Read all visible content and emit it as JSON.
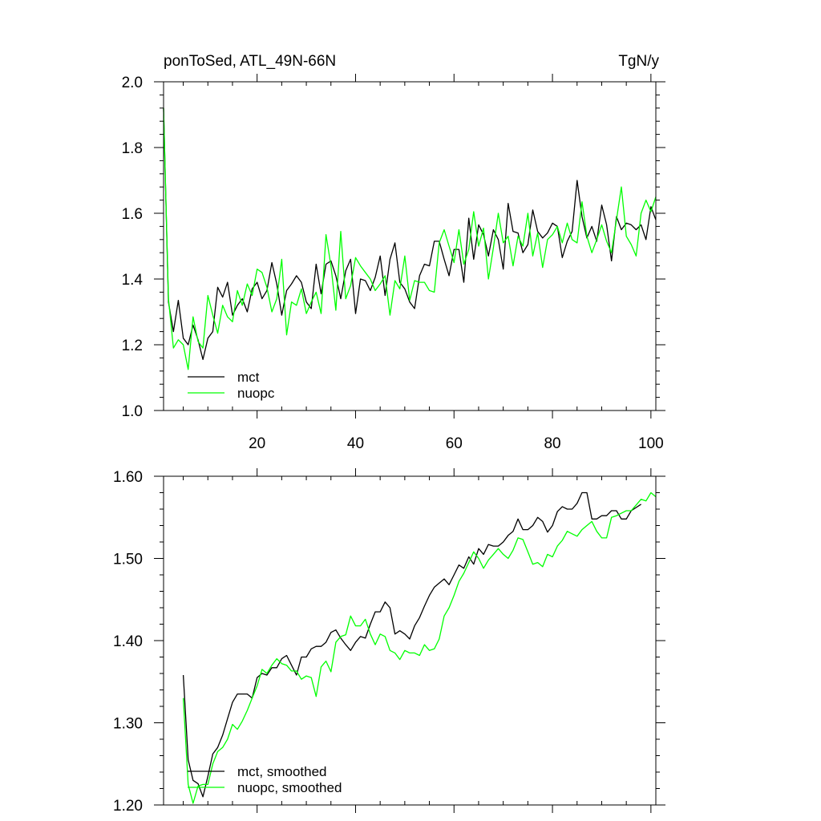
{
  "chart_data": [
    {
      "type": "line",
      "title": "ponToSed, ATL_49N-66N",
      "units": "TgN/y",
      "xlim": [
        1,
        101
      ],
      "ylim": [
        1.0,
        2.0
      ],
      "xticks": [
        20,
        40,
        60,
        80,
        100
      ],
      "xtick_labels": [
        "20",
        "40",
        "60",
        "80",
        "100"
      ],
      "yticks": [
        1.0,
        1.2,
        1.4,
        1.6,
        1.8,
        2.0
      ],
      "ytick_labels": [
        "1.0",
        "1.2",
        "1.4",
        "1.6",
        "1.8",
        "2.0"
      ],
      "legend": "bottom-left",
      "series": [
        {
          "name": "mct",
          "color": "#000000",
          "x_start": 1,
          "values": [
            1.92,
            1.33,
            1.24,
            1.335,
            1.22,
            1.2,
            1.26,
            1.215,
            1.155,
            1.22,
            1.24,
            1.375,
            1.345,
            1.39,
            1.29,
            1.32,
            1.34,
            1.3,
            1.37,
            1.39,
            1.34,
            1.365,
            1.45,
            1.385,
            1.29,
            1.365,
            1.385,
            1.41,
            1.39,
            1.33,
            1.31,
            1.445,
            1.355,
            1.445,
            1.455,
            1.41,
            1.34,
            1.425,
            1.46,
            1.295,
            1.4,
            1.395,
            1.365,
            1.405,
            1.47,
            1.35,
            1.46,
            1.51,
            1.39,
            1.37,
            1.33,
            1.31,
            1.41,
            1.445,
            1.44,
            1.515,
            1.515,
            1.46,
            1.41,
            1.49,
            1.49,
            1.39,
            1.585,
            1.46,
            1.565,
            1.535,
            1.47,
            1.55,
            1.52,
            1.43,
            1.63,
            1.545,
            1.54,
            1.48,
            1.505,
            1.61,
            1.545,
            1.525,
            1.54,
            1.57,
            1.56,
            1.465,
            1.515,
            1.545,
            1.7,
            1.59,
            1.525,
            1.56,
            1.515,
            1.625,
            1.565,
            1.455,
            1.59,
            1.55,
            1.57,
            1.565,
            1.55,
            1.565,
            1.52,
            1.62,
            1.58
          ]
        },
        {
          "name": "nuopc",
          "color": "#00ff00",
          "x_start": 1,
          "values": [
            1.92,
            1.34,
            1.19,
            1.215,
            1.2,
            1.125,
            1.285,
            1.21,
            1.19,
            1.35,
            1.29,
            1.235,
            1.32,
            1.285,
            1.27,
            1.365,
            1.32,
            1.385,
            1.35,
            1.43,
            1.42,
            1.375,
            1.3,
            1.34,
            1.46,
            1.23,
            1.33,
            1.32,
            1.37,
            1.295,
            1.33,
            1.36,
            1.295,
            1.535,
            1.44,
            1.305,
            1.545,
            1.34,
            1.38,
            1.465,
            1.44,
            1.42,
            1.4,
            1.365,
            1.385,
            1.41,
            1.29,
            1.395,
            1.37,
            1.47,
            1.335,
            1.395,
            1.39,
            1.39,
            1.365,
            1.36,
            1.51,
            1.55,
            1.5,
            1.45,
            1.55,
            1.445,
            1.49,
            1.605,
            1.5,
            1.555,
            1.4,
            1.495,
            1.6,
            1.51,
            1.53,
            1.44,
            1.53,
            1.5,
            1.6,
            1.47,
            1.54,
            1.435,
            1.52,
            1.535,
            1.56,
            1.51,
            1.57,
            1.52,
            1.51,
            1.635,
            1.53,
            1.48,
            1.52,
            1.565,
            1.515,
            1.48,
            1.58,
            1.68,
            1.53,
            1.505,
            1.47,
            1.6,
            1.64,
            1.605,
            1.65
          ]
        }
      ]
    },
    {
      "type": "line",
      "xlim": [
        1,
        101
      ],
      "ylim": [
        1.2,
        1.6
      ],
      "xticks": [
        20,
        40,
        60,
        80,
        100
      ],
      "yticks": [
        1.2,
        1.3,
        1.4,
        1.5,
        1.6
      ],
      "ytick_labels": [
        "1.20",
        "1.30",
        "1.40",
        "1.50",
        "1.60"
      ],
      "legend": "bottom-left",
      "series": [
        {
          "name": "mct, smoothed",
          "color": "#000000",
          "x_start": 5,
          "values": [
            1.358,
            1.255,
            1.23,
            1.226,
            1.21,
            1.235,
            1.262,
            1.27,
            1.285,
            1.305,
            1.325,
            1.335,
            1.335,
            1.335,
            1.33,
            1.355,
            1.36,
            1.358,
            1.367,
            1.367,
            1.378,
            1.382,
            1.37,
            1.358,
            1.38,
            1.38,
            1.39,
            1.393,
            1.393,
            1.398,
            1.41,
            1.413,
            1.403,
            1.395,
            1.388,
            1.398,
            1.405,
            1.403,
            1.42,
            1.435,
            1.435,
            1.447,
            1.44,
            1.408,
            1.412,
            1.408,
            1.402,
            1.418,
            1.428,
            1.442,
            1.455,
            1.465,
            1.47,
            1.475,
            1.468,
            1.48,
            1.492,
            1.488,
            1.502,
            1.493,
            1.512,
            1.505,
            1.517,
            1.515,
            1.515,
            1.52,
            1.528,
            1.533,
            1.548,
            1.535,
            1.535,
            1.54,
            1.55,
            1.545,
            1.532,
            1.54,
            1.557,
            1.563,
            1.56,
            1.56,
            1.567,
            1.58,
            1.58,
            1.548,
            1.548,
            1.552,
            1.552,
            1.558,
            1.558,
            1.548,
            1.548,
            1.558,
            1.562,
            1.566
          ]
        },
        {
          "name": "nuopc, smoothed",
          "color": "#00ff00",
          "x_start": 5,
          "values": [
            1.33,
            1.225,
            1.202,
            1.223,
            1.225,
            1.225,
            1.25,
            1.265,
            1.27,
            1.28,
            1.298,
            1.292,
            1.302,
            1.315,
            1.33,
            1.345,
            1.365,
            1.36,
            1.37,
            1.378,
            1.372,
            1.37,
            1.363,
            1.363,
            1.353,
            1.357,
            1.355,
            1.332,
            1.368,
            1.375,
            1.362,
            1.398,
            1.405,
            1.407,
            1.43,
            1.418,
            1.418,
            1.426,
            1.408,
            1.395,
            1.408,
            1.405,
            1.388,
            1.385,
            1.377,
            1.388,
            1.385,
            1.385,
            1.382,
            1.395,
            1.388,
            1.39,
            1.402,
            1.43,
            1.44,
            1.455,
            1.472,
            1.482,
            1.495,
            1.508,
            1.5,
            1.488,
            1.498,
            1.505,
            1.512,
            1.505,
            1.5,
            1.51,
            1.525,
            1.523,
            1.508,
            1.493,
            1.495,
            1.49,
            1.505,
            1.502,
            1.515,
            1.522,
            1.533,
            1.53,
            1.527,
            1.535,
            1.54,
            1.545,
            1.533,
            1.525,
            1.525,
            1.55,
            1.552,
            1.555,
            1.558,
            1.558,
            1.565,
            1.572,
            1.57,
            1.58,
            1.575
          ]
        }
      ]
    }
  ]
}
